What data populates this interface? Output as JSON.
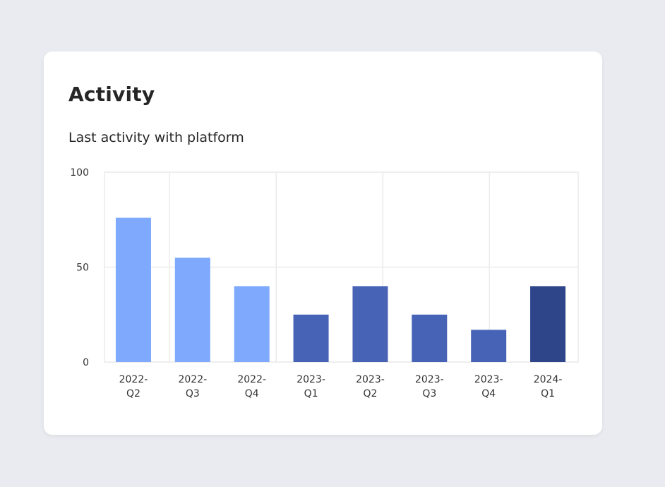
{
  "card": {
    "title": "Activity",
    "subtitle": "Last activity with platform"
  },
  "chart_data": {
    "type": "bar",
    "title": "Activity",
    "subtitle": "Last activity with platform",
    "xlabel": "",
    "ylabel": "",
    "ylim": [
      0,
      100
    ],
    "yticks": [
      0,
      50,
      100
    ],
    "grid": true,
    "categories": [
      [
        "2022-",
        "Q2"
      ],
      [
        "2022-",
        "Q3"
      ],
      [
        "2022-",
        "Q4"
      ],
      [
        "2023-",
        "Q1"
      ],
      [
        "2023-",
        "Q2"
      ],
      [
        "2023-",
        "Q3"
      ],
      [
        "2023-",
        "Q4"
      ],
      [
        "2024-",
        "Q1"
      ]
    ],
    "values": [
      76,
      55,
      40,
      25,
      40,
      25,
      17,
      40
    ],
    "colors": [
      "#7ea9fd",
      "#7ea9fd",
      "#7ea9fd",
      "#4663b6",
      "#4663b6",
      "#4663b6",
      "#4663b6",
      "#2e4589"
    ],
    "grid_color": "#ebebeb"
  }
}
